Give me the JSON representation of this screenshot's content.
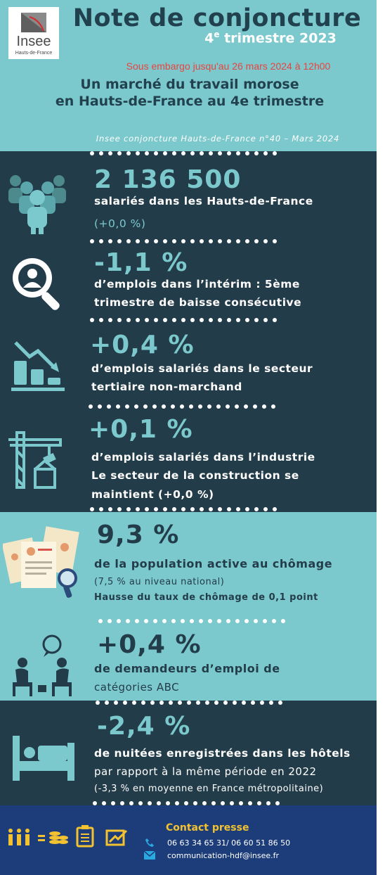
{
  "logo": {
    "word": "Insee",
    "region": "Hauts-de-France"
  },
  "header": {
    "title": "Note de conjoncture",
    "quarter_number": "4",
    "quarter_suffix": "e",
    "quarter_rest": "trimestre 2023",
    "embargo": "Sous embargo jusqu'au 26 mars 2024 à 12h00",
    "subtitle_line1": "Un marché du travail morose",
    "subtitle_line2": "en Hauts-de-France au 4e trimestre",
    "issue": "Insee conjoncture Hauts-de-France n°40 – Mars 2024"
  },
  "stats": [
    {
      "value": "2 136 500",
      "lines": [
        "salariés dans les Hauts-de-France",
        "(+0,0 %)"
      ],
      "icon": "people-group-icon"
    },
    {
      "value": "-1,1 %",
      "lines": [
        "d’emplois dans l’intérim : 5ème",
        "trimestre de baisse consécutive"
      ],
      "icon": "magnifier-person-icon"
    },
    {
      "value": "+0,4 %",
      "lines": [
        "d’emplois salariés dans le secteur",
        "tertiaire non-marchand"
      ],
      "icon": "declining-bars-icon"
    },
    {
      "value": "+0,1 %",
      "lines": [
        "d’emplois salariés dans l’industrie",
        "Le secteur de la construction se",
        "maintient (+0,0 %)"
      ],
      "icon": "crane-icon"
    },
    {
      "value": "9,3 %",
      "lines": [
        "de la population active au chômage",
        "(7,5 % au niveau national)",
        "Hausse du taux de chômage de 0,1 point"
      ],
      "icon": "resumes-icon"
    },
    {
      "value": "+0,4 %",
      "lines": [
        "de demandeurs d’emploi de",
        "catégories ABC"
      ],
      "icon": "interview-icon"
    },
    {
      "value": "-2,4 %",
      "lines": [
        "de nuitées enregistrées dans les hôtels",
        "par rapport à la même période en 2022",
        "(-3,3 % en moyenne en France métropolitaine)"
      ],
      "icon": "hotel-bed-icon"
    }
  ],
  "footer": {
    "contact_title": "Contact presse",
    "phone": "06 63 34 65 31/ 06 60 51 86 50",
    "email": "communication-hdf@insee.fr",
    "icons": [
      "people-icon",
      "coins-icon",
      "clipboard-icon",
      "trend-chart-icon"
    ]
  },
  "colors": {
    "teal": "#7cc9cd",
    "navy": "#233c4a",
    "footer": "#1d3d7a",
    "embargo_red": "#e9433f",
    "contact_gold": "#f2c230"
  }
}
